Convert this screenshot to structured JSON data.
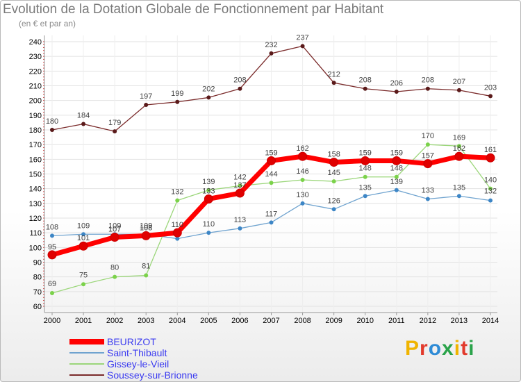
{
  "header": {
    "title": "Evolution de la Dotation Globale de Fonctionnement par Habitant",
    "subtitle": "(en € et par an)"
  },
  "logo": {
    "text": "Proxiti",
    "colors": [
      "#f0b400",
      "#e23a2c",
      "#2e8bd6",
      "#2aa34a",
      "#f0b400",
      "#e23a2c",
      "#2aa34a"
    ]
  },
  "chart_data": {
    "type": "line",
    "title": "Evolution de la Dotation Globale de Fonctionnement par Habitant",
    "subtitle": "(en € et par an)",
    "xlabel": "",
    "ylabel": "",
    "ylim": [
      60,
      240
    ],
    "yticks": [
      60,
      70,
      80,
      90,
      100,
      110,
      120,
      130,
      140,
      150,
      160,
      170,
      180,
      190,
      200,
      210,
      220,
      230,
      240
    ],
    "categories": [
      "2000",
      "2001",
      "2002",
      "2003",
      "2004",
      "2005",
      "2006",
      "2007",
      "2008",
      "2009",
      "2010",
      "2011",
      "2012",
      "2013",
      "2014"
    ],
    "legend_position": "bottom-left",
    "series": [
      {
        "name": "Soussey-sur-Brionne",
        "color": "#7a2a2a",
        "marker": "#5a1a1a",
        "values": [
          180,
          184,
          179,
          197,
          199,
          202,
          208,
          232,
          237,
          212,
          208,
          206,
          208,
          207,
          203
        ]
      },
      {
        "name": "Saint-Thibault",
        "color": "#6fa3cf",
        "marker": "#3d86c6",
        "values": [
          108,
          109,
          109,
          109,
          106,
          110,
          113,
          117,
          130,
          126,
          135,
          139,
          133,
          135,
          132
        ]
      },
      {
        "name": "Gissey-le-Vieil",
        "color": "#9bd67a",
        "marker": "#7bd24a",
        "values": [
          69,
          75,
          80,
          81,
          132,
          139,
          142,
          144,
          146,
          145,
          148,
          148,
          170,
          169,
          140
        ]
      },
      {
        "name": "BEURIZOT",
        "color": "#ff0000",
        "marker": "#e00000",
        "values": [
          95,
          101,
          107,
          108,
          110,
          133,
          137,
          159,
          162,
          158,
          159,
          159,
          157,
          162,
          161
        ]
      }
    ],
    "point_labels": {
      "Soussey-sur-Brionne": [
        "180",
        "184",
        "179",
        "197",
        "199",
        "202",
        "208",
        "232",
        "237",
        "212",
        "208",
        "206",
        "208",
        "207",
        "203"
      ],
      "Saint-Thibault": [
        "108",
        "109",
        "109",
        "109",
        "",
        "110",
        "113",
        "117",
        "130",
        "126",
        "135",
        "139",
        "133",
        "135",
        "132"
      ],
      "Gissey-le-Vieil": [
        "69",
        "75",
        "80",
        "81",
        "132",
        "139",
        "142",
        "144",
        "146",
        "145",
        "148",
        "148",
        "170",
        "169",
        "140"
      ],
      "BEURIZOT": [
        "95",
        "101",
        "107",
        "108",
        "110",
        "133",
        "137",
        "159",
        "162",
        "158",
        "159",
        "159",
        "157",
        "162",
        "161"
      ]
    },
    "legend": [
      "BEURIZOT",
      "Saint-Thibault",
      "Gissey-le-Vieil",
      "Soussey-sur-Brionne"
    ]
  }
}
